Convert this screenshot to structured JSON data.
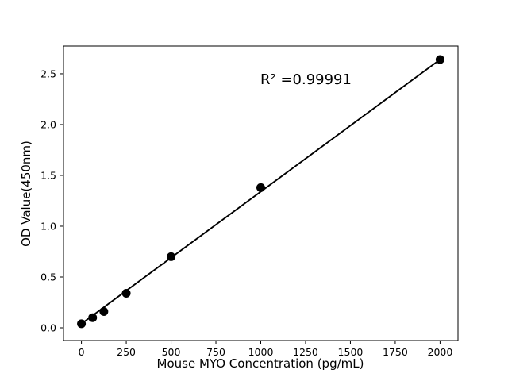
{
  "chart_data": {
    "type": "scatter",
    "title": "",
    "xlabel": "Mouse MYO Concentration (pg/mL)",
    "ylabel": "OD Value(450nm)",
    "annotation": "R² =0.99991",
    "x": [
      0,
      62.5,
      125,
      250,
      500,
      1000,
      2000
    ],
    "y": [
      0.04,
      0.1,
      0.16,
      0.34,
      0.7,
      1.38,
      2.64
    ],
    "fit_line": {
      "x": [
        0,
        2000
      ],
      "y": [
        0.04,
        2.64
      ]
    },
    "xtick_values": [
      0,
      250,
      500,
      750,
      1000,
      1250,
      1500,
      1750,
      2000
    ],
    "xtick_labels": [
      "0",
      "250",
      "500",
      "750",
      "1000",
      "1250",
      "1500",
      "1750",
      "2000"
    ],
    "ytick_values": [
      0.0,
      0.5,
      1.0,
      1.5,
      2.0,
      2.5
    ],
    "ytick_labels": [
      "0.0",
      "0.5",
      "1.0",
      "1.5",
      "2.0",
      "2.5"
    ],
    "xlim": [
      -100,
      2100
    ],
    "ylim": [
      -0.125,
      2.773
    ],
    "grid": false,
    "legend": null,
    "point_color": "#000000",
    "line_color": "#000000",
    "background": "#ffffff"
  }
}
